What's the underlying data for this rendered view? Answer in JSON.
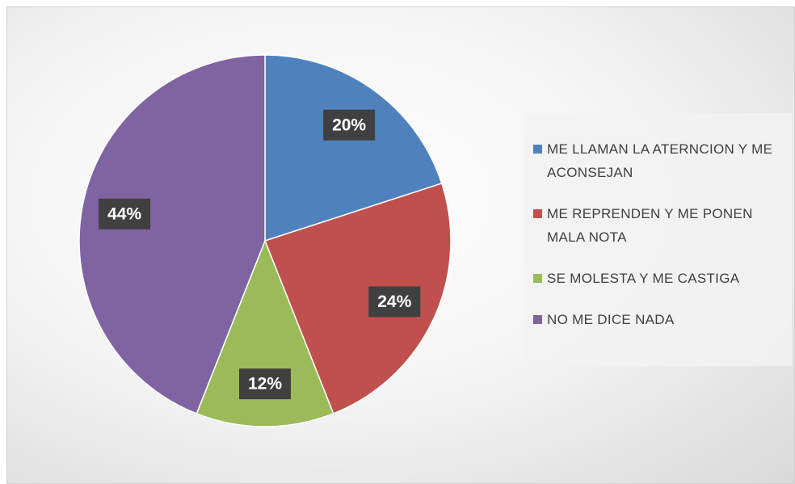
{
  "chart_data": {
    "type": "pie",
    "categories": [
      "ME LLAMAN LA ATERNCION Y ME ACONSEJAN",
      "ME REPRENDEN Y ME PONEN MALA NOTA",
      "SE MOLESTA Y ME CASTIGA",
      "NO ME DICE NADA"
    ],
    "values": [
      20,
      24,
      12,
      44
    ],
    "value_labels": [
      "20%",
      "24%",
      "12%",
      "44%"
    ],
    "colors": [
      "#4f81bd",
      "#c0504d",
      "#9bbb59",
      "#8064a2"
    ],
    "legend": "right"
  }
}
